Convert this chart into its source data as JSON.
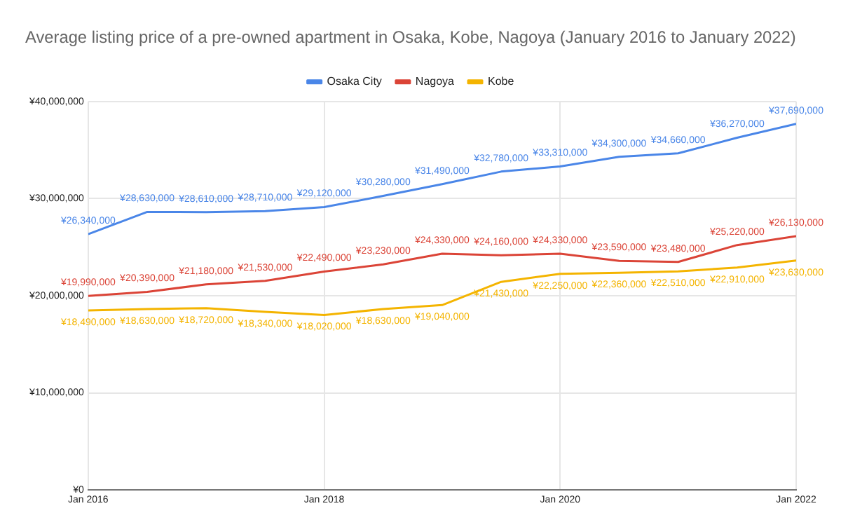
{
  "chart_data": {
    "type": "line",
    "title": "Average listing price of a pre-owned apartment in Osaka, Kobe, Nagoya (January 2016 to January 2022)",
    "x": [
      "2016-01",
      "2016-07",
      "2017-01",
      "2017-07",
      "2018-01",
      "2018-07",
      "2019-01",
      "2019-07",
      "2020-01",
      "2020-07",
      "2021-01",
      "2021-07",
      "2022-01"
    ],
    "series": [
      {
        "name": "Osaka City",
        "color": "#4a86e8",
        "values": [
          26340000,
          28630000,
          28610000,
          28710000,
          29120000,
          30280000,
          31490000,
          32780000,
          33310000,
          34300000,
          34660000,
          36270000,
          37690000
        ],
        "value_labels": [
          "¥26,340,000",
          "¥28,630,000",
          "¥28,610,000",
          "¥28,710,000",
          "¥29,120,000",
          "¥30,280,000",
          "¥31,490,000",
          "¥32,780,000",
          "¥33,310,000",
          "¥34,300,000",
          "¥34,660,000",
          "¥36,270,000",
          "¥37,690,000"
        ]
      },
      {
        "name": "Nagoya",
        "color": "#db4437",
        "values": [
          19990000,
          20390000,
          21180000,
          21530000,
          22490000,
          23230000,
          24330000,
          24160000,
          24330000,
          23590000,
          23480000,
          25220000,
          26130000
        ],
        "value_labels": [
          "¥19,990,000",
          "¥20,390,000",
          "¥21,180,000",
          "¥21,530,000",
          "¥22,490,000",
          "¥23,230,000",
          "¥24,330,000",
          "¥24,160,000",
          "¥24,330,000",
          "¥23,590,000",
          "¥23,480,000",
          "¥25,220,000",
          "¥26,130,000"
        ]
      },
      {
        "name": "Kobe",
        "color": "#f4b400",
        "values": [
          18490000,
          18630000,
          18720000,
          18340000,
          18020000,
          18630000,
          19040000,
          21430000,
          22250000,
          22360000,
          22510000,
          22910000,
          23630000
        ],
        "value_labels": [
          "¥18,490,000",
          "¥18,630,000",
          "¥18,720,000",
          "¥18,340,000",
          "¥18,020,000",
          "¥18,630,000",
          "¥19,040,000",
          "¥21,430,000",
          "¥22,250,000",
          "¥22,360,000",
          "¥22,510,000",
          "¥22,910,000",
          "¥23,630,000"
        ]
      }
    ],
    "xlim": [
      "2016-01",
      "2022-01"
    ],
    "xticks": [
      {
        "value": "2016-01",
        "label": "Jan 2016"
      },
      {
        "value": "2018-01",
        "label": "Jan 2018"
      },
      {
        "value": "2020-01",
        "label": "Jan 2020"
      },
      {
        "value": "2022-01",
        "label": "Jan 2022"
      }
    ],
    "ylim": [
      0,
      40000000
    ],
    "yticks": [
      {
        "value": 0,
        "label": "¥0"
      },
      {
        "value": 10000000,
        "label": "¥10,000,000"
      },
      {
        "value": 20000000,
        "label": "¥20,000,000"
      },
      {
        "value": 30000000,
        "label": "¥30,000,000"
      },
      {
        "value": 40000000,
        "label": "¥40,000,000"
      }
    ],
    "grid": true,
    "legend": "top",
    "marker": "none",
    "line_style": "solid"
  }
}
